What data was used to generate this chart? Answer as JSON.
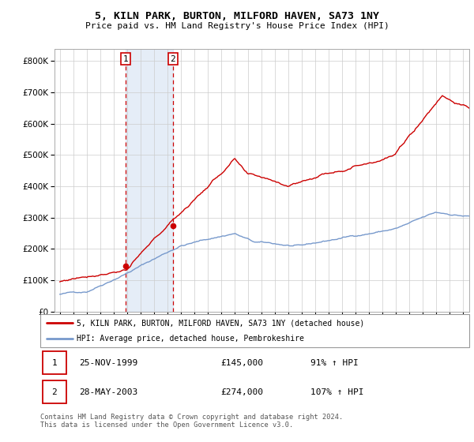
{
  "title": "5, KILN PARK, BURTON, MILFORD HAVEN, SA73 1NY",
  "subtitle": "Price paid vs. HM Land Registry's House Price Index (HPI)",
  "hpi_color": "#7799cc",
  "price_color": "#cc0000",
  "background_color": "#ffffff",
  "grid_color": "#cccccc",
  "purchase1_x": 1999.9,
  "purchase2_x": 2003.42,
  "purchase1_y": 145000,
  "purchase2_y": 274000,
  "ylim": [
    0,
    840000
  ],
  "xlim_start": 1994.6,
  "xlim_end": 2025.5,
  "legend_line1": "5, KILN PARK, BURTON, MILFORD HAVEN, SA73 1NY (detached house)",
  "legend_line2": "HPI: Average price, detached house, Pembrokeshire",
  "table_row1": [
    "1",
    "25-NOV-1999",
    "£145,000",
    "91% ↑ HPI"
  ],
  "table_row2": [
    "2",
    "28-MAY-2003",
    "£274,000",
    "107% ↑ HPI"
  ],
  "footer": "Contains HM Land Registry data © Crown copyright and database right 2024.\nThis data is licensed under the Open Government Licence v3.0.",
  "shade_color": "#ccddf0",
  "shade_alpha": 0.5
}
